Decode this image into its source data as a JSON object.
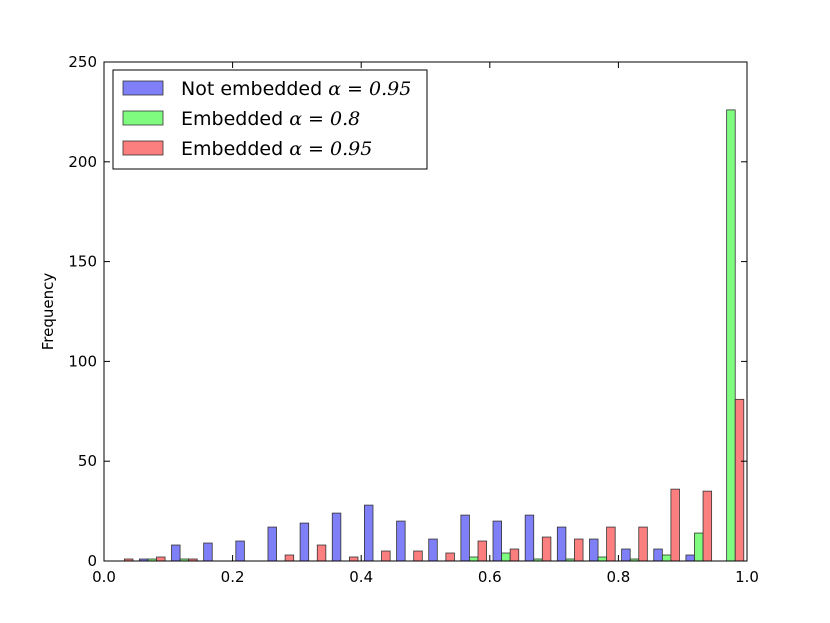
{
  "chart_data": {
    "type": "bar",
    "title": "",
    "xlabel": "",
    "ylabel": "Frequency",
    "xlim": [
      0.0,
      1.0
    ],
    "ylim": [
      0,
      250
    ],
    "x_ticks": [
      "0.0",
      "0.2",
      "0.4",
      "0.6",
      "0.8",
      "1.0"
    ],
    "y_ticks": [
      "0",
      "50",
      "100",
      "150",
      "200",
      "250"
    ],
    "grid": false,
    "legend_position": "top-left",
    "bins": 20,
    "series": [
      {
        "name": "Not embedded",
        "math": "α = 0.95",
        "color": "#7f7ff8",
        "x": [
          0.025,
          0.075,
          0.125,
          0.175,
          0.225,
          0.275,
          0.325,
          0.375,
          0.425,
          0.475,
          0.525,
          0.575,
          0.625,
          0.675,
          0.725,
          0.775,
          0.825,
          0.875,
          0.925,
          0.975
        ],
        "values": [
          0,
          1,
          8,
          9,
          10,
          17,
          19,
          24,
          28,
          20,
          11,
          23,
          20,
          23,
          17,
          11,
          6,
          6,
          3,
          0
        ]
      },
      {
        "name": "Embedded",
        "math": "α = 0.8",
        "color": "#7ffc7f",
        "x": [
          0.025,
          0.075,
          0.125,
          0.175,
          0.225,
          0.275,
          0.325,
          0.375,
          0.425,
          0.475,
          0.525,
          0.575,
          0.625,
          0.675,
          0.725,
          0.775,
          0.825,
          0.875,
          0.925,
          0.975
        ],
        "values": [
          0,
          1,
          1,
          0,
          0,
          0,
          0,
          0,
          0,
          0,
          0,
          2,
          4,
          1,
          1,
          2,
          1,
          3,
          14,
          226
        ]
      },
      {
        "name": "Embedded",
        "math": "α = 0.95",
        "color": "#fc7f7f",
        "x": [
          0.025,
          0.075,
          0.125,
          0.175,
          0.225,
          0.275,
          0.325,
          0.375,
          0.425,
          0.475,
          0.525,
          0.575,
          0.625,
          0.675,
          0.725,
          0.775,
          0.825,
          0.875,
          0.925,
          0.975
        ],
        "values": [
          1,
          2,
          1,
          0,
          0,
          3,
          8,
          2,
          5,
          5,
          4,
          10,
          6,
          12,
          11,
          17,
          17,
          36,
          35,
          81
        ]
      }
    ]
  }
}
